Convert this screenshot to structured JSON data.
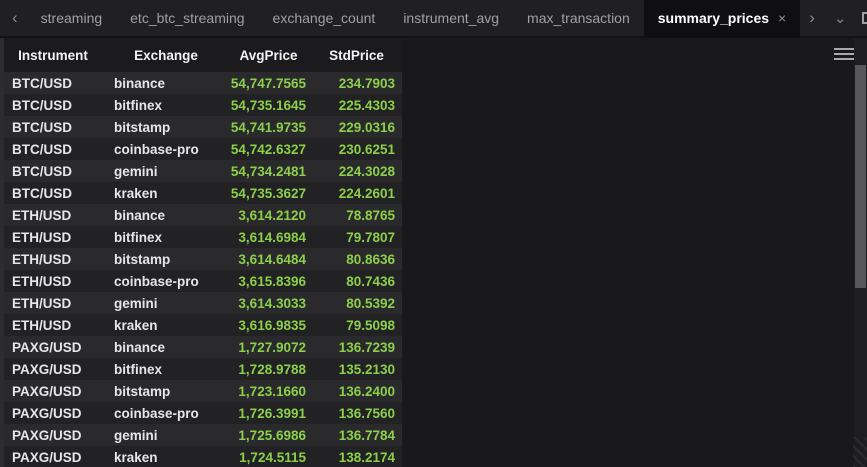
{
  "tab_bar": {
    "tabs": [
      {
        "label": "streaming",
        "active": false
      },
      {
        "label": "etc_btc_streaming",
        "active": false
      },
      {
        "label": "exchange_count",
        "active": false
      },
      {
        "label": "instrument_avg",
        "active": false
      },
      {
        "label": "max_transaction",
        "active": false
      },
      {
        "label": "summary_prices",
        "active": true
      }
    ],
    "active_tab_close": "×",
    "icons": {
      "scroll_left": "‹",
      "scroll_right": "›",
      "more_tabs": "⌄"
    }
  },
  "table": {
    "columns": [
      "Instrument",
      "Exchange",
      "AvgPrice",
      "StdPrice"
    ],
    "rows": [
      [
        "BTC/USD",
        "binance",
        "54,747.7565",
        "234.7903"
      ],
      [
        "BTC/USD",
        "bitfinex",
        "54,735.1645",
        "225.4303"
      ],
      [
        "BTC/USD",
        "bitstamp",
        "54,741.9735",
        "229.0316"
      ],
      [
        "BTC/USD",
        "coinbase-pro",
        "54,742.6327",
        "230.6251"
      ],
      [
        "BTC/USD",
        "gemini",
        "54,734.2481",
        "224.3028"
      ],
      [
        "BTC/USD",
        "kraken",
        "54,735.3627",
        "224.2601"
      ],
      [
        "ETH/USD",
        "binance",
        "3,614.2120",
        "78.8765"
      ],
      [
        "ETH/USD",
        "bitfinex",
        "3,614.6984",
        "79.7807"
      ],
      [
        "ETH/USD",
        "bitstamp",
        "3,614.6484",
        "80.8636"
      ],
      [
        "ETH/USD",
        "coinbase-pro",
        "3,615.8396",
        "80.7436"
      ],
      [
        "ETH/USD",
        "gemini",
        "3,614.3033",
        "80.5392"
      ],
      [
        "ETH/USD",
        "kraken",
        "3,616.9835",
        "79.5098"
      ],
      [
        "PAXG/USD",
        "binance",
        "1,727.9072",
        "136.7239"
      ],
      [
        "PAXG/USD",
        "bitfinex",
        "1,728.9788",
        "135.2130"
      ],
      [
        "PAXG/USD",
        "bitstamp",
        "1,723.1660",
        "136.2400"
      ],
      [
        "PAXG/USD",
        "coinbase-pro",
        "1,726.3991",
        "136.7560"
      ],
      [
        "PAXG/USD",
        "gemini",
        "1,725.6986",
        "136.7784"
      ],
      [
        "PAXG/USD",
        "kraken",
        "1,724.5115",
        "138.2174"
      ]
    ]
  },
  "colors": {
    "value_green": "#8bcf4a",
    "row_light": "#2a2a2c",
    "row_dark": "#222224",
    "active_tab_bg": "#0f0f11",
    "tab_bar_bg": "#202022",
    "content_bg": "#19191b"
  }
}
